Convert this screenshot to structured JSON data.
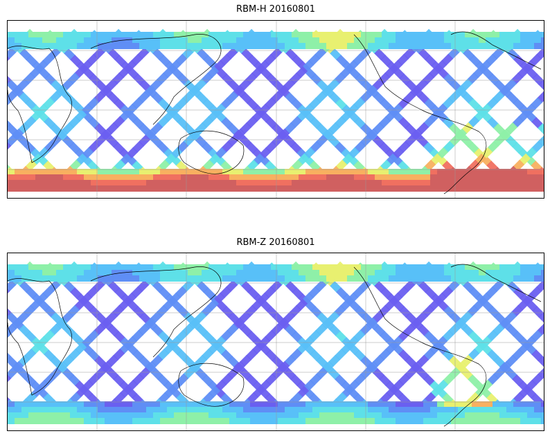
{
  "panels": [
    {
      "title": "RBM-H 20160801",
      "hot_regions": "south"
    },
    {
      "title": "RBM-Z 20160801",
      "hot_regions": "mild"
    }
  ],
  "colormap": [
    "#6a5ff0",
    "#5f8ef5",
    "#58c0f8",
    "#5ee0e8",
    "#8ef0a8",
    "#e8f070",
    "#f8b060",
    "#f07060",
    "#d06060"
  ]
}
